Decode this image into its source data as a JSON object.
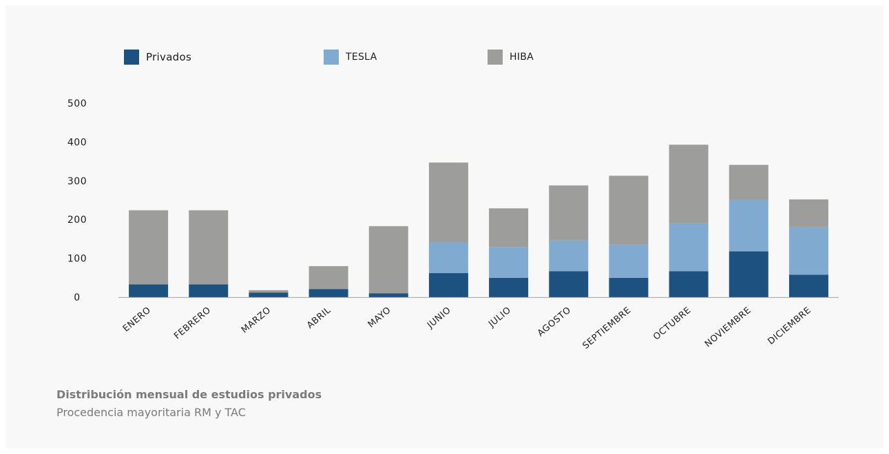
{
  "colors": {
    "privados": "#1c5180",
    "tesla": "#80aad0",
    "hiba": "#9d9d9b",
    "axis": "#b0b0b0",
    "text": "#1c1c1c",
    "caption": "#7a7a7a"
  },
  "legend": [
    {
      "label": "Privados",
      "color": "#1c5180"
    },
    {
      "label": "TESLA",
      "color": "#80aad0"
    },
    {
      "label": "HIBA",
      "color": "#9d9d9b"
    }
  ],
  "caption": {
    "title": "Distribución mensual de estudios privados",
    "subtitle": "Procedencia mayoritaria RM y TAC"
  },
  "chart_data": {
    "type": "bar",
    "stacked": true,
    "categories": [
      "ENERO",
      "FEBRERO",
      "MARZO",
      "ABRIL",
      "MAYO",
      "JUNIO",
      "JULIO",
      "AGOSTO",
      "SEPTIEMBRE",
      "OCTUBRE",
      "NOVIEMBRE",
      "DICIEMBRE"
    ],
    "series": [
      {
        "name": "Privados",
        "color": "#1c5180",
        "values": [
          33,
          33,
          12,
          21,
          10,
          62,
          50,
          67,
          50,
          67,
          118,
          58
        ]
      },
      {
        "name": "TESLA",
        "color": "#80aad0",
        "values": [
          0,
          0,
          0,
          0,
          0,
          79,
          79,
          79,
          85,
          123,
          133,
          123
        ]
      },
      {
        "name": "HIBA",
        "color": "#9d9d9b",
        "values": [
          191,
          191,
          6,
          59,
          173,
          206,
          100,
          142,
          178,
          203,
          90,
          71
        ]
      }
    ],
    "yticks": [
      0,
      100,
      200,
      300,
      400,
      500
    ],
    "ylim": [
      0,
      500
    ],
    "xlabel": "",
    "ylabel": "",
    "title": "",
    "grid": false,
    "legend_position": "top"
  }
}
